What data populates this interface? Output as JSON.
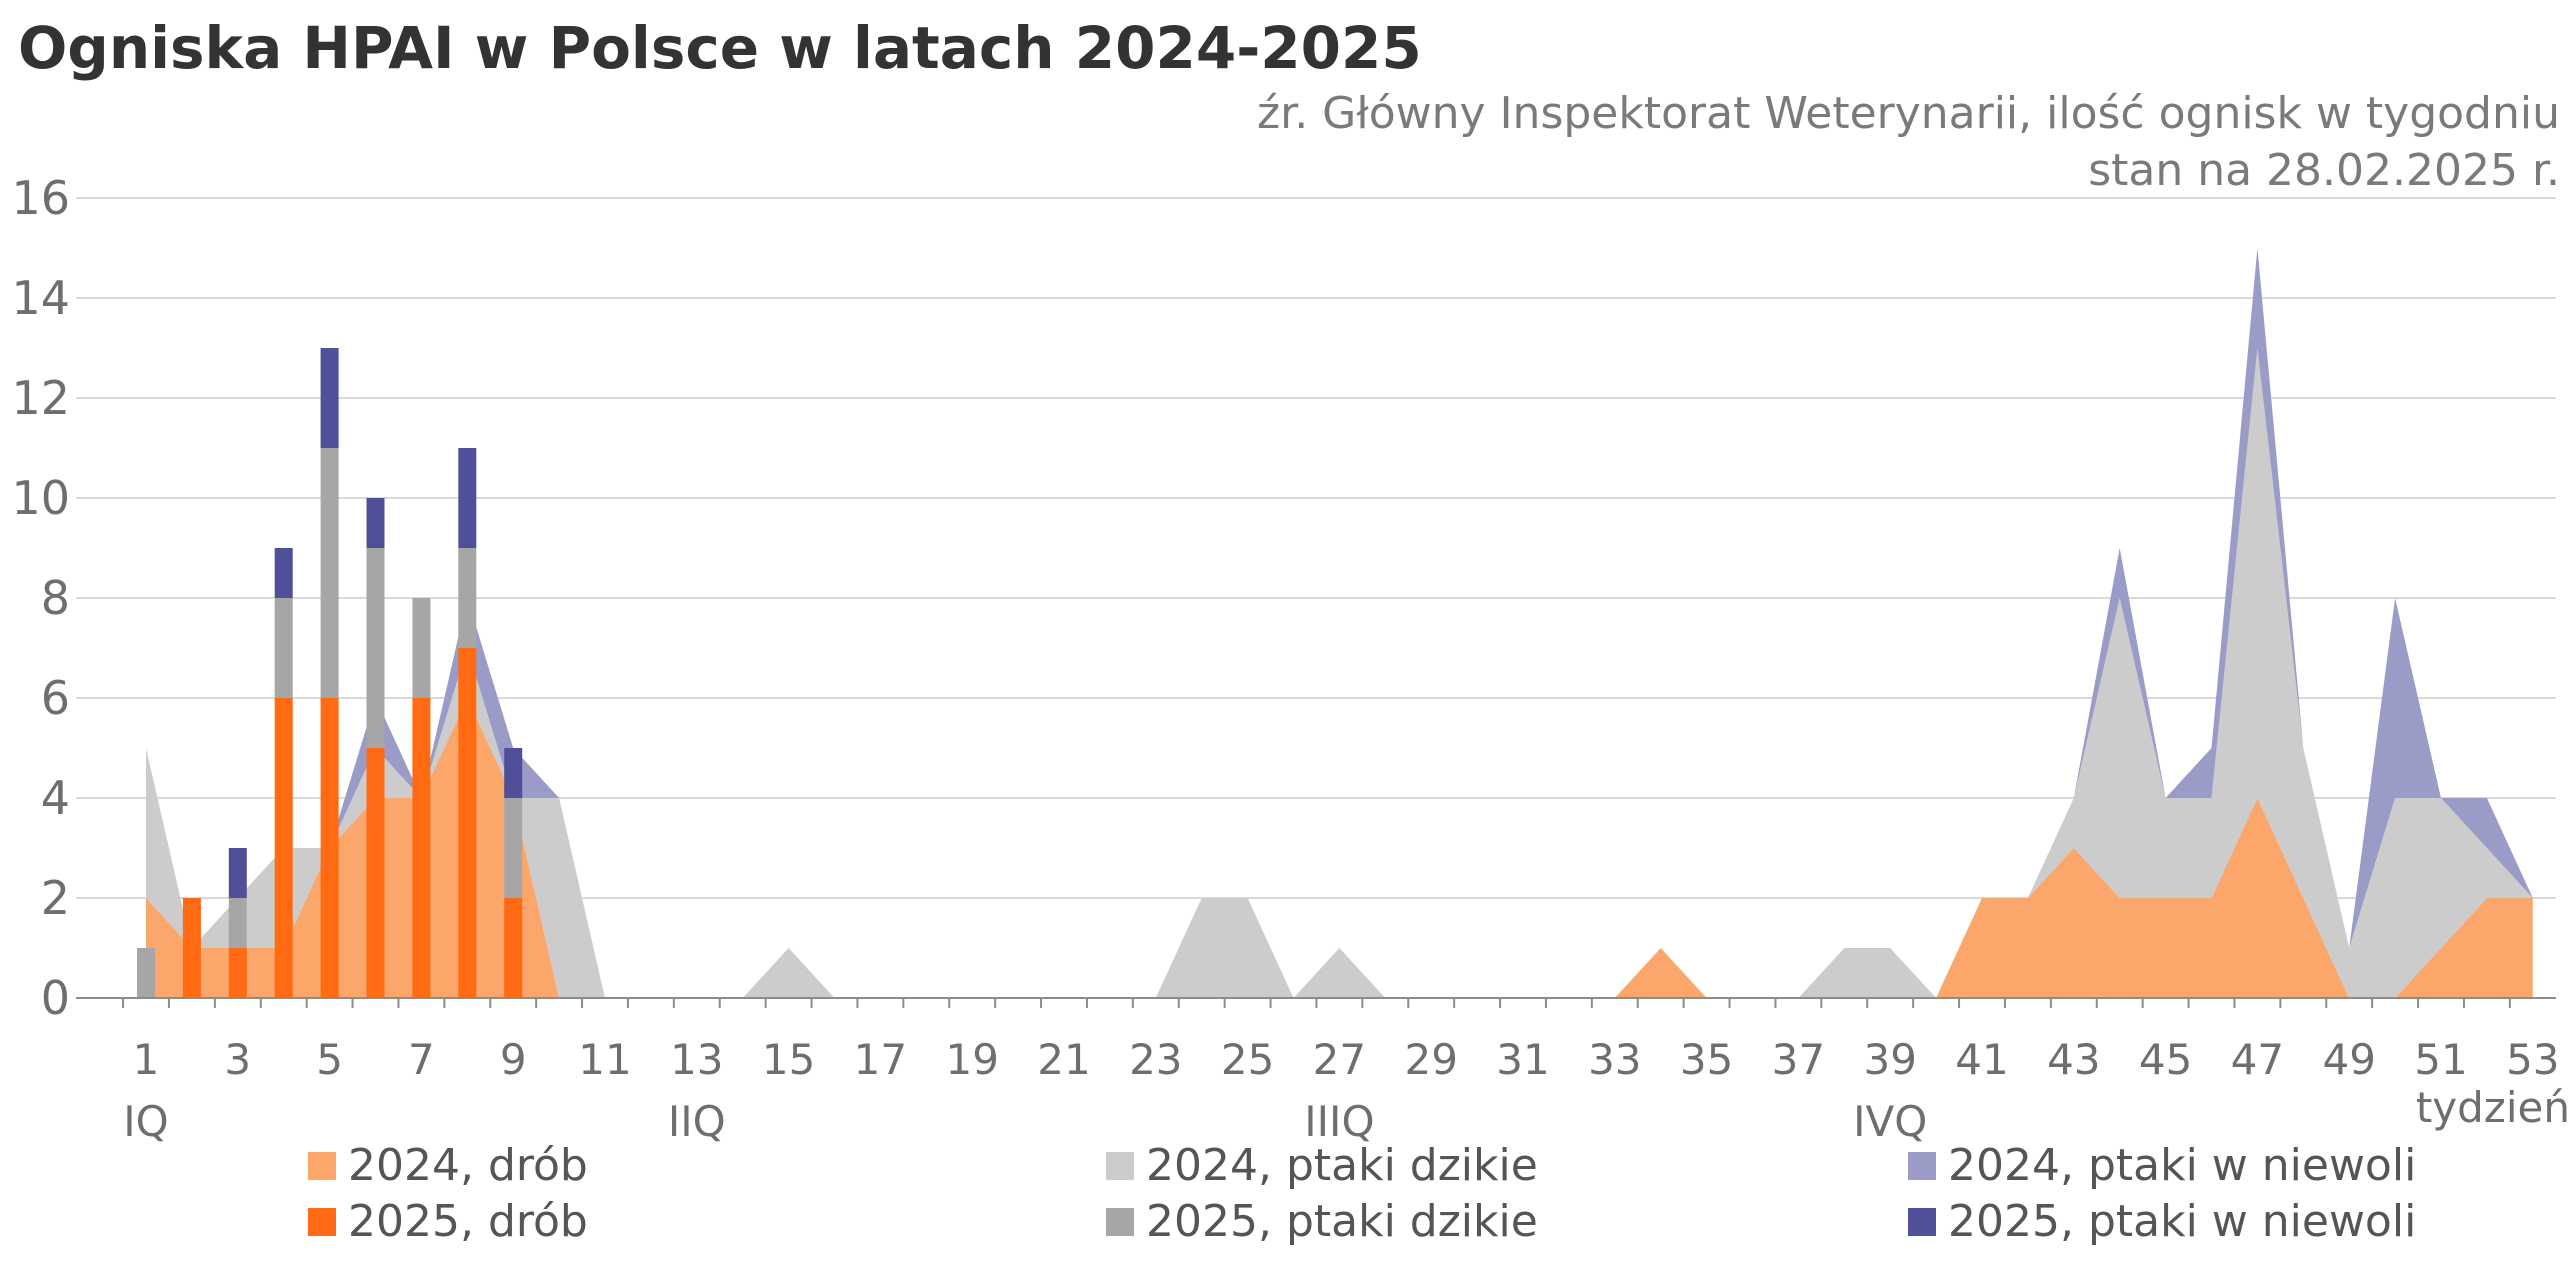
{
  "title": "Ogniska HPAI w Polsce w latach 2024-2025",
  "source_line1": "źr. Główny Inspektorat Weterynarii, ilość ognisk w tygodniu",
  "source_line2": "stan na 28.02.2025 r.",
  "colors": {
    "poultry_2024": "#fba66a",
    "wild_2024": "#cccccc",
    "captive_2024": "#9b9bc8",
    "poultry_2025": "#ff6a12",
    "wild_2025": "#a6a6a6",
    "captive_2025": "#50509a",
    "grid": "#d9d9d9",
    "axis": "#8c8c8c"
  },
  "chart_data": {
    "type": "area",
    "stacked": true,
    "xlabel": "tydzień",
    "ylabel": "",
    "ylim": [
      0,
      16
    ],
    "yticks": [
      0,
      2,
      4,
      6,
      8,
      10,
      12,
      14,
      16
    ],
    "xticks": [
      1,
      3,
      5,
      7,
      9,
      11,
      13,
      15,
      17,
      19,
      21,
      23,
      25,
      27,
      29,
      31,
      33,
      35,
      37,
      39,
      41,
      43,
      45,
      47,
      49,
      51,
      53
    ],
    "quarter_labels": [
      {
        "week": 1,
        "label": "IQ"
      },
      {
        "week": 13,
        "label": "IIQ"
      },
      {
        "week": 27,
        "label": "IIIQ"
      },
      {
        "week": 39,
        "label": "IVQ"
      }
    ],
    "grid": true,
    "legend_position": "bottom",
    "weeks": [
      1,
      2,
      3,
      4,
      5,
      6,
      7,
      8,
      9,
      10,
      11,
      12,
      13,
      14,
      15,
      16,
      17,
      18,
      19,
      20,
      21,
      22,
      23,
      24,
      25,
      26,
      27,
      28,
      29,
      30,
      31,
      32,
      33,
      34,
      35,
      36,
      37,
      38,
      39,
      40,
      41,
      42,
      43,
      44,
      45,
      46,
      47,
      48,
      49,
      50,
      51,
      52,
      53
    ],
    "area_series": [
      {
        "name": "2024, drób",
        "values": [
          2,
          1,
          1,
          1,
          3,
          4,
          4,
          6,
          4,
          0,
          0,
          0,
          0,
          0,
          0,
          0,
          0,
          0,
          0,
          0,
          0,
          0,
          0,
          0,
          0,
          0,
          0,
          0,
          0,
          0,
          0,
          0,
          0,
          1,
          0,
          0,
          0,
          0,
          0,
          0,
          2,
          2,
          3,
          2,
          2,
          2,
          4,
          2,
          0,
          0,
          1,
          2,
          2
        ]
      },
      {
        "name": "2024, ptaki dzikie",
        "values": [
          3,
          0,
          1,
          2,
          0,
          1,
          0,
          1,
          0,
          4,
          0,
          0,
          0,
          0,
          1,
          0,
          0,
          0,
          0,
          0,
          0,
          0,
          0,
          2,
          2,
          0,
          1,
          0,
          0,
          0,
          0,
          0,
          0,
          0,
          0,
          0,
          0,
          1,
          1,
          0,
          0,
          0,
          1,
          6,
          2,
          2,
          9,
          3,
          1,
          4,
          3,
          1,
          0
        ]
      },
      {
        "name": "2024, ptaki w niewoli",
        "values": [
          0,
          0,
          0,
          0,
          0,
          1,
          0,
          1,
          1,
          0,
          0,
          0,
          0,
          0,
          0,
          0,
          0,
          0,
          0,
          0,
          0,
          0,
          0,
          0,
          0,
          0,
          0,
          0,
          0,
          0,
          0,
          0,
          0,
          0,
          0,
          0,
          0,
          0,
          0,
          0,
          0,
          0,
          0,
          1,
          0,
          1,
          2,
          0,
          0,
          4,
          0,
          1,
          0
        ]
      }
    ],
    "bar_series": [
      {
        "name": "2025, drób",
        "values": [
          0,
          2,
          1,
          6,
          6,
          5,
          6,
          7,
          2
        ]
      },
      {
        "name": "2025, ptaki dzikie",
        "values": [
          1,
          0,
          1,
          2,
          5,
          4,
          2,
          2,
          2
        ]
      },
      {
        "name": "2025, ptaki w niewoli",
        "values": [
          0,
          0,
          1,
          1,
          2,
          1,
          0,
          2,
          1
        ]
      }
    ]
  },
  "legend": [
    {
      "label": "2024, drób",
      "color_key": "poultry_2024"
    },
    {
      "label": "2024, ptaki dzikie",
      "color_key": "wild_2024"
    },
    {
      "label": "2024, ptaki w niewoli",
      "color_key": "captive_2024"
    },
    {
      "label": "2025, drób",
      "color_key": "poultry_2025"
    },
    {
      "label": "2025, ptaki dzikie",
      "color_key": "wild_2025"
    },
    {
      "label": "2025, ptaki w niewoli",
      "color_key": "captive_2025"
    }
  ]
}
